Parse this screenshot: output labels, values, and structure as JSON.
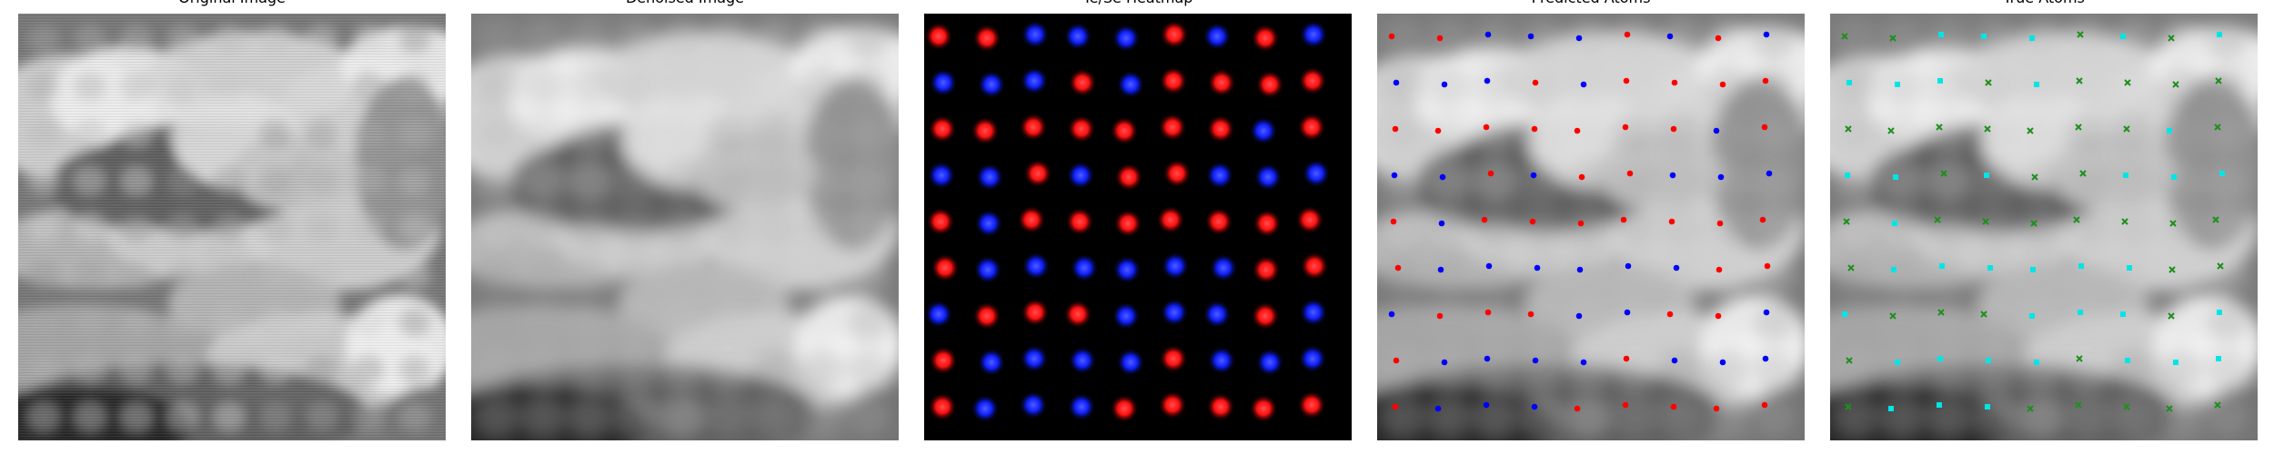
{
  "panels": [
    {
      "id": "original",
      "title": "Original Image",
      "kind": "grayscale_noisy",
      "description": "noisy grayscale STM-like image with blurred bright and dark regions"
    },
    {
      "id": "denoised",
      "title": "Denoised Image",
      "kind": "grayscale_smooth",
      "description": "smoothed grayscale image"
    },
    {
      "id": "heatmap",
      "title": "Te/Se Heatmap",
      "kind": "atom_heatmap",
      "background": "#000000",
      "colors": {
        "red": "#ff1a1a",
        "blue": "#1f2cff"
      }
    },
    {
      "id": "predicted",
      "title": "Predicted Atoms",
      "kind": "prediction_overlay",
      "colors": {
        "red": "#ff0000",
        "blue": "#0000ff"
      }
    },
    {
      "id": "true",
      "title": "True Atoms",
      "kind": "truth_overlay",
      "colors": {
        "cyan": "#00e5e5",
        "green": "#1d8f1d"
      }
    }
  ],
  "grid": {
    "rows": 9,
    "cols": 9
  },
  "atom_labels": {
    "heatmap": [
      [
        "red",
        "red",
        "blue",
        "blue",
        "blue",
        "red",
        "blue",
        "red",
        "blue"
      ],
      [
        "blue",
        "blue",
        "blue",
        "red",
        "blue",
        "red",
        "red",
        "red",
        "red"
      ],
      [
        "red",
        "red",
        "red",
        "red",
        "red",
        "red",
        "red",
        "blue",
        "red"
      ],
      [
        "blue",
        "blue",
        "red",
        "blue",
        "red",
        "red",
        "blue",
        "blue",
        "blue"
      ],
      [
        "red",
        "blue",
        "red",
        "red",
        "red",
        "red",
        "red",
        "red",
        "red"
      ],
      [
        "red",
        "blue",
        "blue",
        "blue",
        "blue",
        "blue",
        "blue",
        "red",
        "red"
      ],
      [
        "blue",
        "red",
        "red",
        "red",
        "blue",
        "blue",
        "blue",
        "red",
        "blue"
      ],
      [
        "red",
        "blue",
        "blue",
        "blue",
        "blue",
        "red",
        "blue",
        "blue",
        "blue"
      ],
      [
        "red",
        "blue",
        "blue",
        "blue",
        "red",
        "red",
        "red",
        "red",
        "red"
      ]
    ],
    "predicted": [
      [
        "red",
        "red",
        "blue",
        "blue",
        "blue",
        "red",
        "blue",
        "red",
        "blue"
      ],
      [
        "blue",
        "blue",
        "blue",
        "red",
        "blue",
        "red",
        "red",
        "red",
        "red"
      ],
      [
        "red",
        "red",
        "red",
        "red",
        "red",
        "red",
        "red",
        "blue",
        "red"
      ],
      [
        "blue",
        "blue",
        "red",
        "blue",
        "red",
        "red",
        "blue",
        "blue",
        "blue"
      ],
      [
        "red",
        "blue",
        "red",
        "red",
        "red",
        "red",
        "red",
        "red",
        "red"
      ],
      [
        "red",
        "blue",
        "blue",
        "blue",
        "blue",
        "blue",
        "blue",
        "red",
        "red"
      ],
      [
        "blue",
        "red",
        "red",
        "red",
        "blue",
        "blue",
        "red",
        "red",
        "blue"
      ],
      [
        "red",
        "blue",
        "blue",
        "blue",
        "blue",
        "red",
        "blue",
        "blue",
        "blue"
      ],
      [
        "red",
        "blue",
        "blue",
        "blue",
        "red",
        "red",
        "red",
        "red",
        "red"
      ]
    ],
    "true": [
      [
        "green",
        "green",
        "cyan",
        "cyan",
        "cyan",
        "green",
        "cyan",
        "green",
        "cyan"
      ],
      [
        "cyan",
        "cyan",
        "cyan",
        "green",
        "cyan",
        "green",
        "green",
        "green",
        "green"
      ],
      [
        "green",
        "green",
        "green",
        "green",
        "green",
        "green",
        "green",
        "cyan",
        "green"
      ],
      [
        "cyan",
        "cyan",
        "green",
        "cyan",
        "green",
        "green",
        "cyan",
        "cyan",
        "cyan"
      ],
      [
        "green",
        "cyan",
        "green",
        "green",
        "green",
        "green",
        "green",
        "green",
        "green"
      ],
      [
        "green",
        "cyan",
        "cyan",
        "cyan",
        "cyan",
        "cyan",
        "cyan",
        "green",
        "green"
      ],
      [
        "cyan",
        "green",
        "green",
        "green",
        "cyan",
        "cyan",
        "cyan",
        "green",
        "cyan"
      ],
      [
        "green",
        "cyan",
        "cyan",
        "cyan",
        "cyan",
        "green",
        "cyan",
        "cyan",
        "cyan"
      ],
      [
        "green",
        "cyan",
        "cyan",
        "cyan",
        "green",
        "green",
        "green",
        "green",
        "green"
      ]
    ]
  }
}
